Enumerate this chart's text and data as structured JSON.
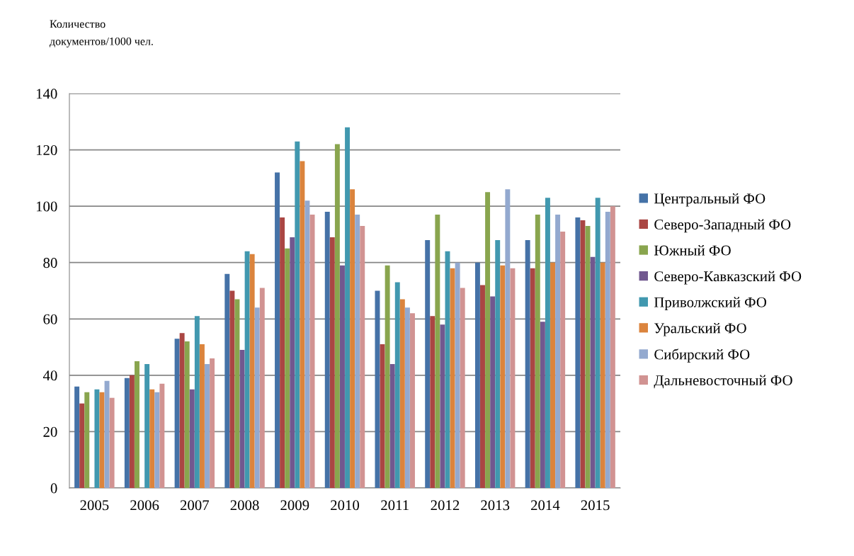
{
  "chart_data": {
    "type": "bar",
    "ylabel": "Количество\nдокументов/1000 чел.",
    "categories": [
      "2005",
      "2006",
      "2007",
      "2008",
      "2009",
      "2010",
      "2011",
      "2012",
      "2013",
      "2014",
      "2015"
    ],
    "series": [
      {
        "name": "Центральный ФО",
        "color": "#4572a7",
        "values": [
          36,
          39,
          53,
          76,
          112,
          98,
          70,
          88,
          80,
          88,
          96
        ]
      },
      {
        "name": "Северо-Западный ФО",
        "color": "#aa4643",
        "values": [
          30,
          40,
          55,
          70,
          96,
          89,
          51,
          61,
          72,
          78,
          95
        ]
      },
      {
        "name": "Южный ФО",
        "color": "#89a54e",
        "values": [
          34,
          45,
          52,
          67,
          85,
          122,
          79,
          97,
          105,
          97,
          93
        ]
      },
      {
        "name": "Северо-Кавказский ФО",
        "color": "#71588f",
        "values": [
          null,
          null,
          35,
          49,
          89,
          79,
          44,
          58,
          68,
          59,
          82
        ]
      },
      {
        "name": "Приволжский ФО",
        "color": "#4198af",
        "values": [
          35,
          44,
          61,
          84,
          123,
          128,
          73,
          84,
          88,
          103,
          103
        ]
      },
      {
        "name": "Уральский ФО",
        "color": "#db843d",
        "values": [
          34,
          35,
          51,
          83,
          116,
          106,
          67,
          78,
          79,
          80,
          80
        ]
      },
      {
        "name": "Сибирский ФО",
        "color": "#93a9cf",
        "values": [
          38,
          34,
          44,
          64,
          102,
          97,
          64,
          80,
          106,
          97,
          98
        ]
      },
      {
        "name": "Дальневосточный ФО",
        "color": "#d19392",
        "values": [
          32,
          37,
          46,
          71,
          97,
          93,
          62,
          71,
          78,
          91,
          100
        ]
      }
    ],
    "ylim": [
      0,
      140
    ],
    "yticks": [
      0,
      20,
      40,
      60,
      80,
      100,
      120,
      140
    ],
    "grid": "y",
    "legend": "right"
  }
}
